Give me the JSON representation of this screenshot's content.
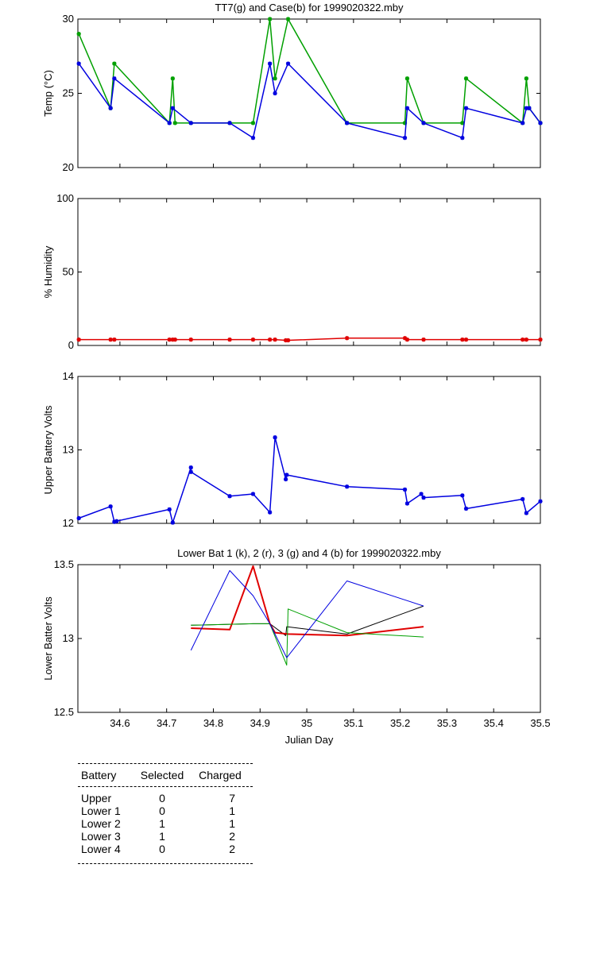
{
  "chart_data": [
    {
      "type": "line",
      "title": "TT7(g) and Case(b) for 1999020322.mby",
      "xlabel": "",
      "ylabel": "Temp  (°C)",
      "xlim": [
        34.51,
        35.5
      ],
      "ylim": [
        20,
        30
      ],
      "yticks": [
        20,
        25,
        30
      ],
      "series": [
        {
          "color": "#00a000",
          "marker": "*",
          "points": [
            [
              34.512,
              29
            ],
            [
              34.58,
              24
            ],
            [
              34.588,
              27
            ],
            [
              34.706,
              23
            ],
            [
              34.713,
              26
            ],
            [
              34.718,
              23
            ],
            [
              34.752,
              23
            ],
            [
              34.835,
              23
            ],
            [
              34.885,
              23
            ],
            [
              34.921,
              30
            ],
            [
              34.932,
              26
            ],
            [
              34.96,
              30
            ],
            [
              35.086,
              23
            ],
            [
              35.21,
              23
            ],
            [
              35.215,
              26
            ],
            [
              35.25,
              23
            ],
            [
              35.333,
              23
            ],
            [
              35.341,
              26
            ],
            [
              35.462,
              23
            ],
            [
              35.47,
              26
            ],
            [
              35.476,
              24
            ],
            [
              35.5,
              23
            ]
          ]
        },
        {
          "color": "#0000e0",
          "marker": "*",
          "points": [
            [
              34.512,
              27
            ],
            [
              34.58,
              24
            ],
            [
              34.588,
              26
            ],
            [
              34.706,
              23
            ],
            [
              34.713,
              24
            ],
            [
              34.752,
              23
            ],
            [
              34.835,
              23
            ],
            [
              34.885,
              22
            ],
            [
              34.921,
              27
            ],
            [
              34.932,
              25
            ],
            [
              34.96,
              27
            ],
            [
              35.086,
              23
            ],
            [
              35.21,
              22
            ],
            [
              35.215,
              24
            ],
            [
              35.25,
              23
            ],
            [
              35.333,
              22
            ],
            [
              35.341,
              24
            ],
            [
              35.462,
              23
            ],
            [
              35.47,
              24
            ],
            [
              35.476,
              24
            ],
            [
              35.5,
              23
            ]
          ]
        }
      ]
    },
    {
      "type": "line",
      "title": "",
      "xlabel": "",
      "ylabel": "% Humidity",
      "xlim": [
        34.51,
        35.5
      ],
      "ylim": [
        0,
        100
      ],
      "yticks": [
        0,
        50,
        100
      ],
      "series": [
        {
          "color": "#e00000",
          "marker": "*",
          "points": [
            [
              34.512,
              4
            ],
            [
              34.58,
              4
            ],
            [
              34.588,
              4
            ],
            [
              34.706,
              4
            ],
            [
              34.713,
              4
            ],
            [
              34.718,
              4
            ],
            [
              34.752,
              4
            ],
            [
              34.835,
              4
            ],
            [
              34.885,
              4
            ],
            [
              34.921,
              4
            ],
            [
              34.932,
              4
            ],
            [
              34.955,
              3.5
            ],
            [
              34.96,
              3.5
            ],
            [
              35.086,
              5
            ],
            [
              35.21,
              5
            ],
            [
              35.215,
              4
            ],
            [
              35.25,
              4
            ],
            [
              35.333,
              4
            ],
            [
              35.341,
              4
            ],
            [
              35.462,
              4
            ],
            [
              35.47,
              4
            ],
            [
              35.5,
              4
            ]
          ]
        }
      ]
    },
    {
      "type": "line",
      "title": "",
      "xlabel": "",
      "ylabel": "Upper Battery Volts",
      "xlim": [
        34.51,
        35.5
      ],
      "ylim": [
        12,
        14
      ],
      "yticks": [
        12,
        13,
        14
      ],
      "series": [
        {
          "color": "#0000e0",
          "marker": "*",
          "points": [
            [
              34.512,
              12.07
            ],
            [
              34.58,
              12.23
            ],
            [
              34.588,
              12.02
            ],
            [
              34.593,
              12.03
            ],
            [
              34.706,
              12.19
            ],
            [
              34.713,
              12.01
            ],
            [
              34.752,
              12.76
            ],
            [
              34.752,
              12.7
            ],
            [
              34.835,
              12.37
            ],
            [
              34.885,
              12.4
            ],
            [
              34.921,
              12.15
            ],
            [
              34.932,
              13.17
            ],
            [
              34.955,
              12.6
            ],
            [
              34.957,
              12.66
            ],
            [
              35.086,
              12.5
            ],
            [
              35.21,
              12.46
            ],
            [
              35.215,
              12.27
            ],
            [
              35.245,
              12.4
            ],
            [
              35.25,
              12.35
            ],
            [
              35.333,
              12.38
            ],
            [
              35.341,
              12.2
            ],
            [
              35.462,
              12.33
            ],
            [
              35.47,
              12.14
            ],
            [
              35.5,
              12.3
            ]
          ]
        }
      ]
    },
    {
      "type": "line",
      "title": "Lower Bat 1 (k), 2 (r), 3 (g) and 4 (b) for 1999020322.mby",
      "xlabel": "Julian Day",
      "ylabel": "Lower Batter Volts",
      "xlim": [
        34.51,
        35.5
      ],
      "ylim": [
        12.5,
        13.5
      ],
      "yticks": [
        12.5,
        13,
        13.5
      ],
      "xticks": [
        34.6,
        34.7,
        34.8,
        34.9,
        35,
        35.1,
        35.2,
        35.3,
        35.4,
        35.5
      ],
      "series": [
        {
          "color": "#000000",
          "width": 1,
          "points": [
            [
              34.752,
              13.09
            ],
            [
              34.885,
              13.1
            ],
            [
              34.921,
              13.1
            ],
            [
              34.955,
              13.02
            ],
            [
              34.957,
              13.08
            ],
            [
              35.086,
              13.03
            ],
            [
              35.25,
              13.22
            ]
          ]
        },
        {
          "color": "#e00000",
          "width": 2,
          "points": [
            [
              34.752,
              13.07
            ],
            [
              34.835,
              13.06
            ],
            [
              34.885,
              13.49
            ],
            [
              34.921,
              13.1
            ],
            [
              34.932,
              13.04
            ],
            [
              34.96,
              13.03
            ],
            [
              35.086,
              13.02
            ],
            [
              35.25,
              13.08
            ]
          ]
        },
        {
          "color": "#00a000",
          "width": 1,
          "points": [
            [
              34.752,
              13.09
            ],
            [
              34.885,
              13.1
            ],
            [
              34.921,
              13.1
            ],
            [
              34.957,
              12.82
            ],
            [
              34.96,
              13.2
            ],
            [
              35.086,
              13.04
            ],
            [
              35.25,
              13.01
            ]
          ]
        },
        {
          "color": "#0000e0",
          "width": 1,
          "points": [
            [
              34.752,
              12.92
            ],
            [
              34.835,
              13.46
            ],
            [
              34.885,
              13.29
            ],
            [
              34.921,
              13.1
            ],
            [
              34.957,
              12.87
            ],
            [
              35.086,
              13.39
            ],
            [
              35.25,
              13.22
            ]
          ]
        }
      ]
    }
  ],
  "table": {
    "headers": [
      "Battery",
      "Selected",
      "Charged"
    ],
    "rows": [
      {
        "battery": "Upper",
        "selected": "0",
        "charged": "7"
      },
      {
        "battery": "Lower 1",
        "selected": "0",
        "charged": "1"
      },
      {
        "battery": "Lower 2",
        "selected": "1",
        "charged": "1"
      },
      {
        "battery": "Lower 3",
        "selected": "1",
        "charged": "2"
      },
      {
        "battery": "Lower 4",
        "selected": "0",
        "charged": "2"
      }
    ]
  }
}
